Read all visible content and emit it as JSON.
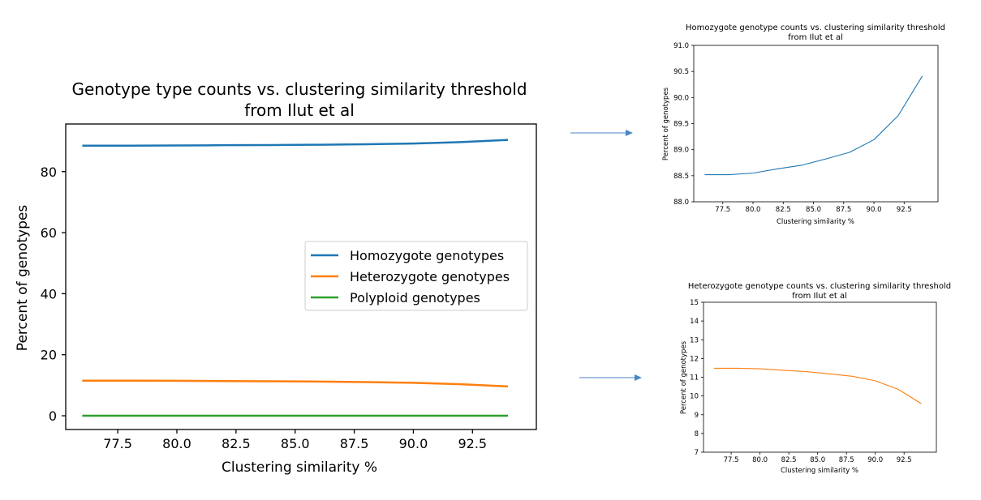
{
  "chart_data": [
    {
      "type": "line",
      "title": "Genotype type counts vs. clustering similarity threshold\nfrom Ilut et al",
      "xlabel": "Clustering similarity %",
      "ylabel": "Percent of genotypes",
      "xlim": [
        75.3,
        95.2
      ],
      "ylim": [
        -4.5,
        95.6
      ],
      "xticks": [
        77.5,
        80.0,
        82.5,
        85.0,
        87.5,
        90.0,
        92.5
      ],
      "yticks": [
        0,
        20,
        40,
        60,
        80
      ],
      "x": [
        76,
        78,
        80,
        82,
        84,
        86,
        88,
        90,
        92,
        94
      ],
      "series": [
        {
          "name": "Homozygote genotypes",
          "color": "#1f77b4",
          "values": [
            88.5,
            88.5,
            88.55,
            88.65,
            88.7,
            88.8,
            88.95,
            89.2,
            89.65,
            90.4
          ]
        },
        {
          "name": "Heterozygote genotypes",
          "color": "#ff7f0e",
          "values": [
            11.5,
            11.5,
            11.45,
            11.35,
            11.3,
            11.2,
            11.05,
            10.8,
            10.35,
            9.6
          ]
        },
        {
          "name": "Polyploid genotypes",
          "color": "#2ca02c",
          "values": [
            0,
            0,
            0,
            0,
            0,
            0,
            0,
            0,
            0,
            0
          ]
        }
      ],
      "legend": "center-right",
      "grid": false
    },
    {
      "type": "line",
      "title": "Homozygote genotype counts vs. clustering similarity threshold\nfrom Ilut et al",
      "xlabel": "Clustering similarity %",
      "ylabel": "Percent of genotypes",
      "xlim": [
        75.1,
        95.3
      ],
      "ylim": [
        88.0,
        91.0
      ],
      "xticks": [
        77.5,
        80.0,
        82.5,
        85.0,
        87.5,
        90.0,
        92.5
      ],
      "yticks": [
        88.0,
        88.5,
        89.0,
        89.5,
        90.0,
        90.5,
        91.0
      ],
      "x": [
        76,
        78,
        80,
        82,
        84,
        86,
        88,
        90,
        92,
        94
      ],
      "series": [
        {
          "color": "#1f77b4",
          "values": [
            88.52,
            88.52,
            88.55,
            88.63,
            88.7,
            88.82,
            88.95,
            89.19,
            89.65,
            90.41
          ]
        }
      ],
      "grid": false
    },
    {
      "type": "line",
      "title": "Heterozygote genotype counts vs. clustering similarity threshold\nfrom Ilut et al",
      "xlabel": "Clustering similarity %",
      "ylabel": "Percent of genotypes",
      "xlim": [
        75.1,
        95.3
      ],
      "ylim": [
        7,
        15
      ],
      "xticks": [
        77.5,
        80.0,
        82.5,
        85.0,
        87.5,
        90.0,
        92.5
      ],
      "yticks": [
        7,
        8,
        9,
        10,
        11,
        12,
        13,
        14,
        15
      ],
      "x": [
        76,
        78,
        80,
        82,
        84,
        86,
        88,
        90,
        92,
        94
      ],
      "series": [
        {
          "color": "#ff7f0e",
          "values": [
            11.48,
            11.48,
            11.45,
            11.37,
            11.3,
            11.18,
            11.05,
            10.81,
            10.35,
            9.59
          ]
        }
      ],
      "grid": false
    }
  ],
  "connector_color": "#4a86c5"
}
